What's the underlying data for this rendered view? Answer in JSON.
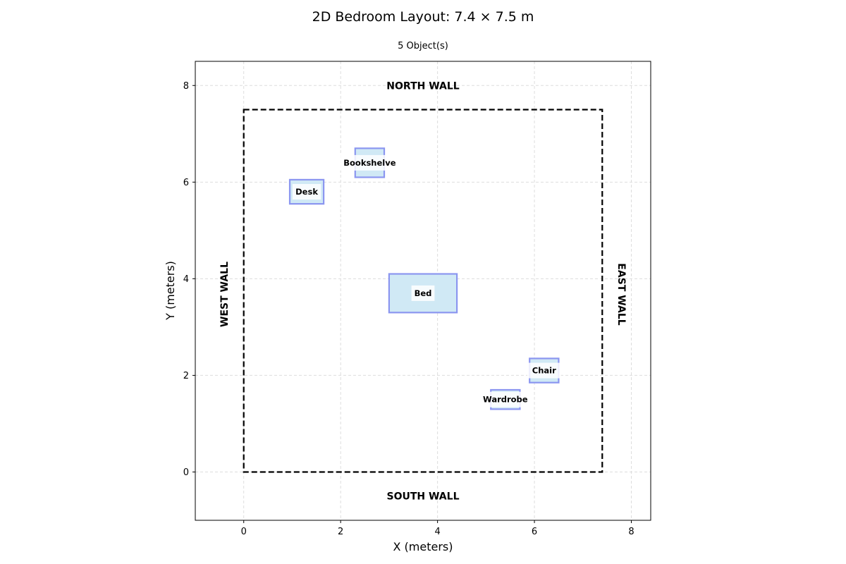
{
  "chart_data": {
    "type": "floor_plan",
    "title": "2D Bedroom Layout: 7.4 × 7.5 m",
    "subtitle": "5 Object(s)",
    "xlabel": "X (meters)",
    "ylabel": "Y (meters)",
    "xlim": [
      -1,
      8.4
    ],
    "ylim": [
      -1,
      8.5
    ],
    "xticks": [
      0,
      2,
      4,
      6,
      8
    ],
    "yticks": [
      0,
      2,
      4,
      6,
      8
    ],
    "grid": true,
    "room": {
      "width": 7.4,
      "depth": 7.5
    },
    "walls": {
      "north": "NORTH WALL",
      "south": "SOUTH WALL",
      "west": "WEST WALL",
      "east": "EAST WALL"
    },
    "objects": [
      {
        "name": "Bookshelve",
        "x": 2.3,
        "y": 6.1,
        "w": 0.6,
        "h": 0.6
      },
      {
        "name": "Desk",
        "x": 0.95,
        "y": 5.55,
        "w": 0.7,
        "h": 0.5
      },
      {
        "name": "Bed",
        "x": 3.0,
        "y": 3.3,
        "w": 1.4,
        "h": 0.8
      },
      {
        "name": "Chair",
        "x": 5.9,
        "y": 1.85,
        "w": 0.6,
        "h": 0.5
      },
      {
        "name": "Wardrobe",
        "x": 5.1,
        "y": 1.3,
        "w": 0.6,
        "h": 0.4
      }
    ],
    "colors": {
      "object_fill": "#d0e9f5",
      "object_edge": "#8b96f0",
      "room_edge": "#000000",
      "grid": "#dddddd"
    }
  }
}
